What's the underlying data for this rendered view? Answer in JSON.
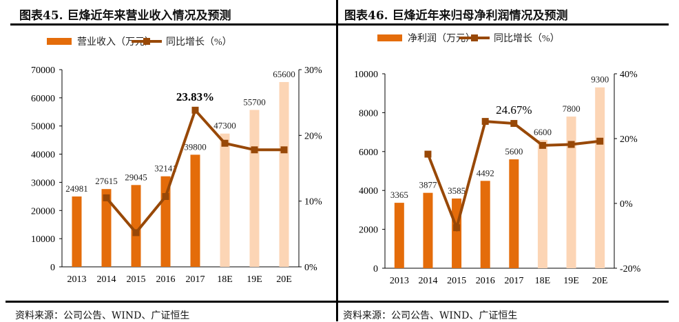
{
  "colors": {
    "bar": "#E46C0A",
    "bar_forecast": "#FCD5B5",
    "line": "#984807"
  },
  "chart_data": [
    {
      "type": "bar+line",
      "title": "图表45.  巨烽近年来营业收入情况及预测",
      "categories": [
        "2013",
        "2014",
        "2015",
        "2016",
        "2017",
        "18E",
        "19E",
        "20E"
      ],
      "forecast_from": "18E",
      "series": [
        {
          "name": "营业收入（万元）",
          "type": "bar",
          "axis": "left",
          "values": [
            24981,
            27615,
            29045,
            32141,
            39800,
            47300,
            55700,
            65600
          ]
        },
        {
          "name": "同比增长（%）",
          "type": "line",
          "axis": "right",
          "values": [
            null,
            10.5,
            5.2,
            10.7,
            23.83,
            18.8,
            17.8,
            17.8
          ]
        }
      ],
      "left_axis": {
        "range": [
          0,
          70000
        ],
        "ticks": [
          0,
          10000,
          20000,
          30000,
          40000,
          50000,
          60000,
          70000
        ]
      },
      "right_axis": {
        "range": [
          0,
          30
        ],
        "ticks": [
          "0%",
          "10%",
          "20%",
          "30%"
        ]
      },
      "annotation": "23.83%",
      "annotation_index": 4,
      "source": "资料来源：公司公告、WIND、广证恒生"
    },
    {
      "type": "bar+line",
      "title": "图表46.  巨烽近年来归母净利润情况及预测",
      "categories": [
        "2013",
        "2014",
        "2015",
        "2016",
        "2017",
        "18E",
        "19E",
        "20E"
      ],
      "forecast_from": "18E",
      "series": [
        {
          "name": "净利润（万元）",
          "type": "bar",
          "axis": "left",
          "values": [
            3365,
            3877,
            3585,
            4492,
            5600,
            6600,
            7800,
            9300
          ]
        },
        {
          "name": "同比增长（%）",
          "type": "line",
          "axis": "right",
          "values": [
            null,
            15.2,
            -7.5,
            25.3,
            24.67,
            17.9,
            18.2,
            19.2
          ]
        }
      ],
      "left_axis": {
        "range": [
          0,
          10000
        ],
        "ticks": [
          0,
          2000,
          4000,
          6000,
          8000,
          10000
        ]
      },
      "right_axis": {
        "range": [
          -20,
          40
        ],
        "ticks": [
          "-20%",
          "0%",
          "20%",
          "40%"
        ]
      },
      "annotation": "24.67%",
      "annotation_index": 4,
      "source": "资料来源：公司公告、WIND、广证恒生"
    }
  ]
}
